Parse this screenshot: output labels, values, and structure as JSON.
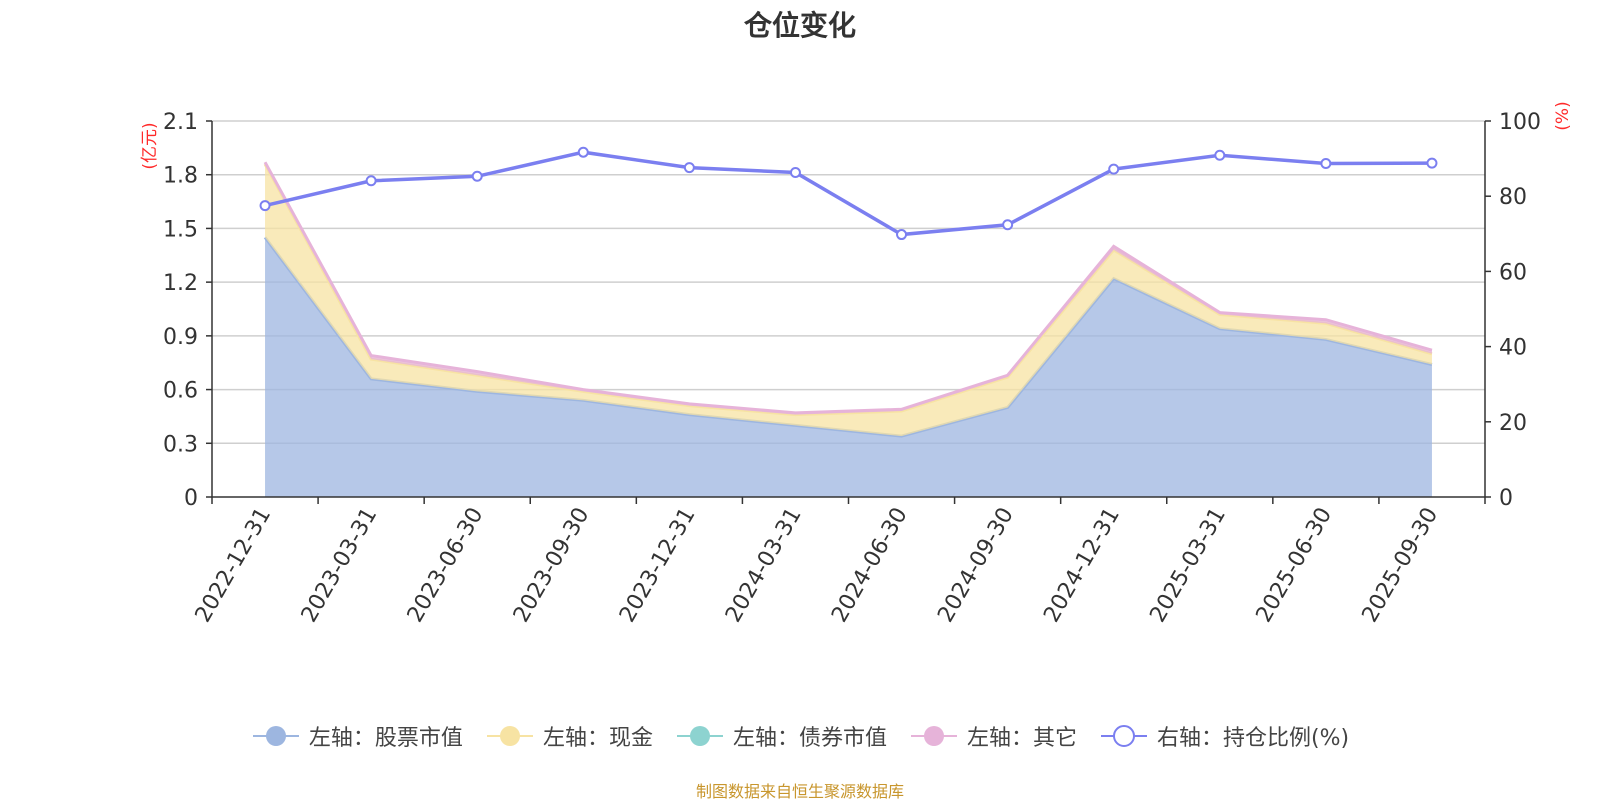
{
  "title": "仓位变化",
  "source_note": "制图数据来自恒生聚源数据库",
  "chart_data": {
    "type": "area",
    "title": "仓位变化",
    "categories": [
      "2022-12-31",
      "2023-03-31",
      "2023-06-30",
      "2023-09-30",
      "2023-12-31",
      "2024-03-31",
      "2024-06-30",
      "2024-09-30",
      "2024-12-31",
      "2025-03-31",
      "2025-06-30",
      "2025-09-30"
    ],
    "left_axis": {
      "label": "(亿元)",
      "min": 0,
      "max": 2.1,
      "ticks": [
        "0",
        "0.3",
        "0.6",
        "0.9",
        "1.2",
        "1.5",
        "1.8",
        "2.1"
      ]
    },
    "right_axis": {
      "label": "(%)",
      "min": 0,
      "max": 100,
      "ticks": [
        "0",
        "20",
        "40",
        "60",
        "80",
        "100"
      ]
    },
    "series": [
      {
        "name": "左轴：股票市值",
        "axis": "left",
        "kind": "stacked-area",
        "color": "#9db6e0",
        "values": [
          1.45,
          0.66,
          0.59,
          0.54,
          0.46,
          0.4,
          0.34,
          0.5,
          1.22,
          0.94,
          0.88,
          0.74
        ]
      },
      {
        "name": "左轴：现金",
        "axis": "left",
        "kind": "stacked-area",
        "color": "#f7e3a3",
        "values": [
          0.41,
          0.11,
          0.09,
          0.05,
          0.05,
          0.06,
          0.14,
          0.17,
          0.16,
          0.08,
          0.09,
          0.06
        ]
      },
      {
        "name": "左轴：债券市值",
        "axis": "left",
        "kind": "stacked-area",
        "color": "#8dd3d0",
        "values": [
          0,
          0,
          0,
          0,
          0,
          0,
          0,
          0,
          0,
          0,
          0,
          0
        ]
      },
      {
        "name": "左轴：其它",
        "axis": "left",
        "kind": "stacked-area",
        "color": "#e6b3d9",
        "values": [
          0.01,
          0.02,
          0.02,
          0.01,
          0.01,
          0.01,
          0.01,
          0.01,
          0.02,
          0.01,
          0.02,
          0.02
        ]
      },
      {
        "name": "右轴：持仓比例(%)",
        "axis": "right",
        "kind": "line",
        "color": "#7b7ff0",
        "values": [
          77.5,
          84.1,
          85.3,
          91.7,
          87.6,
          86.3,
          69.8,
          72.4,
          87.2,
          90.9,
          88.7,
          88.8
        ]
      }
    ]
  }
}
